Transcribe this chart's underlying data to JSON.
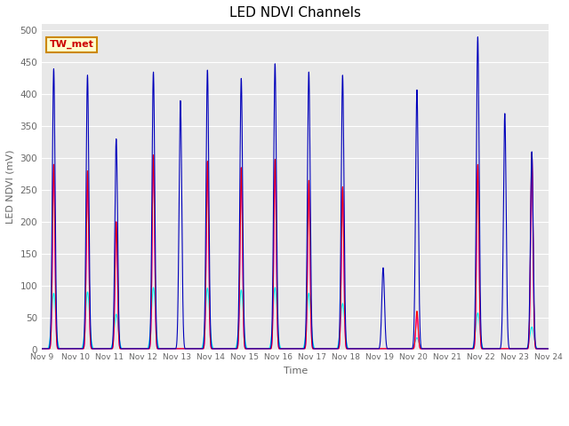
{
  "title": "LED NDVI Channels",
  "xlabel": "Time",
  "ylabel": "LED NDVI (mV)",
  "ylim": [
    0,
    510
  ],
  "legend_label": "TW_met",
  "colors": {
    "LED_Rin": "#ff0000",
    "LED_Nin": "#0000bb",
    "LED_Rout": "#ff00ff",
    "LED_Nout": "#00eeee"
  },
  "bg_color": "#e8e8e8",
  "spike_days": [
    9.35,
    10.35,
    11.2,
    12.3,
    13.1,
    13.9,
    14.9,
    15.9,
    16.9,
    17.9,
    19.1,
    20.1,
    21.9,
    22.7,
    23.5
  ],
  "spike_nin": [
    440,
    430,
    330,
    435,
    390,
    438,
    425,
    448,
    435,
    430,
    128,
    407,
    490,
    370,
    310
  ],
  "spike_rin": [
    290,
    280,
    200,
    305,
    0,
    295,
    285,
    298,
    265,
    255,
    0,
    60,
    290,
    0,
    308
  ],
  "spike_rout": [
    290,
    275,
    200,
    305,
    0,
    293,
    285,
    295,
    260,
    253,
    0,
    55,
    288,
    0,
    305
  ],
  "spike_nout": [
    88,
    90,
    55,
    97,
    0,
    96,
    93,
    97,
    88,
    72,
    0,
    18,
    57,
    0,
    35
  ],
  "x_tick_positions": [
    9,
    10,
    11,
    12,
    13,
    14,
    15,
    16,
    17,
    18,
    19,
    20,
    21,
    22,
    23,
    24
  ],
  "x_tick_labels": [
    "Nov 9",
    "Nov 10",
    "Nov 11",
    "Nov 12",
    "Nov 13",
    "Nov 14",
    "Nov 15",
    "Nov 16",
    "Nov 17",
    "Nov 18",
    "Nov 19",
    "Nov 20",
    "Nov 21",
    "Nov 22",
    "Nov 23",
    "Nov 24"
  ],
  "figsize": [
    6.4,
    4.8
  ],
  "dpi": 100
}
